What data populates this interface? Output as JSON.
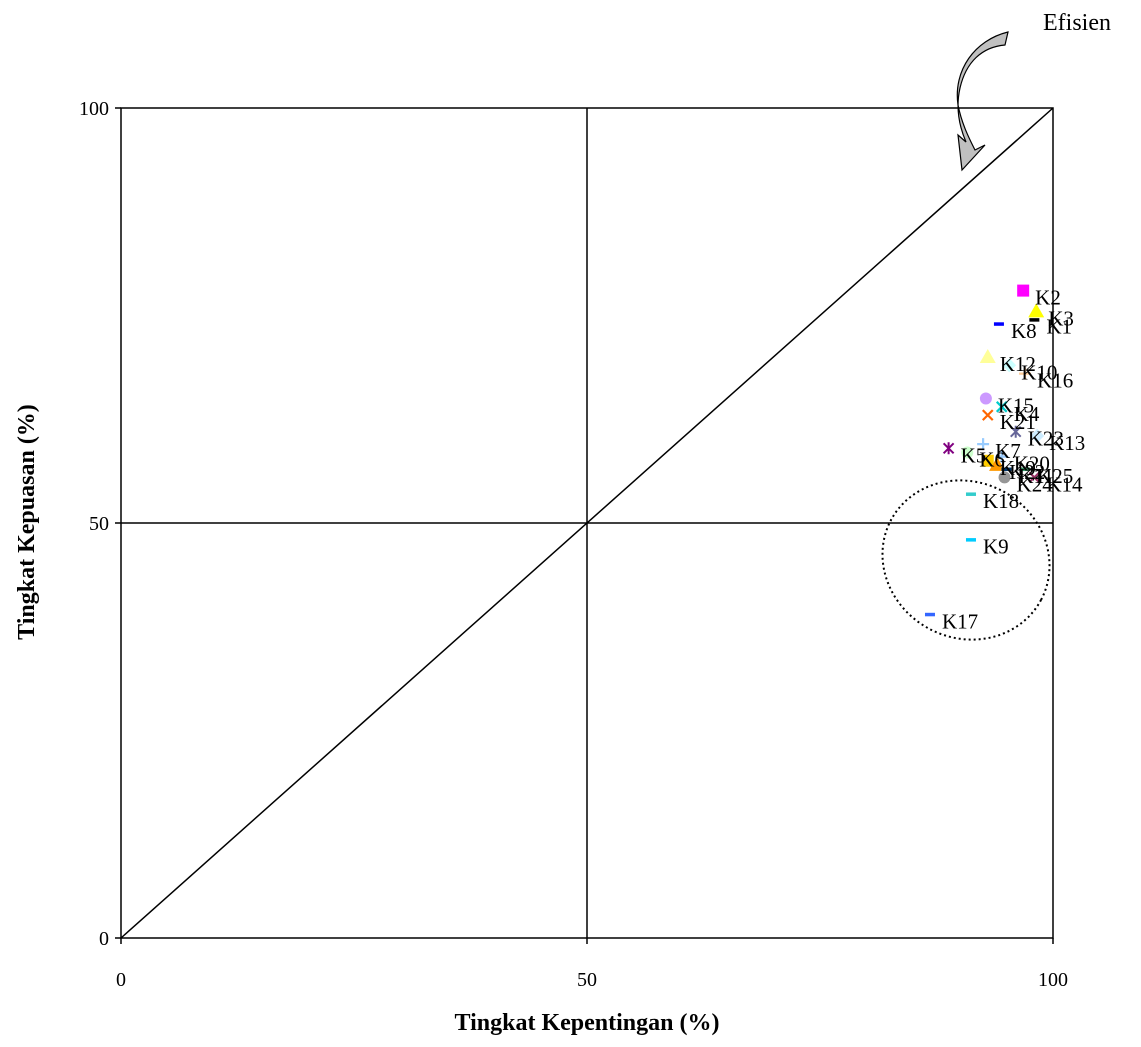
{
  "chart_data": {
    "type": "scatter",
    "title": "",
    "xlabel": "Tingkat Kepentingan (%)",
    "ylabel": "Tingkat Kepuasan (%)",
    "xlim": [
      0,
      100
    ],
    "ylim": [
      0,
      100
    ],
    "xticks": [
      "0",
      "50",
      "100"
    ],
    "yticks": [
      "0",
      "50",
      "100"
    ],
    "grid": "quadrant lines at 50",
    "reference_line": "diagonal y = x",
    "annotation": "Efisien",
    "points": [
      {
        "label": "K2",
        "x": 96.8,
        "y": 78.0,
        "marker": "square",
        "color": "#ff00ff"
      },
      {
        "label": "K3",
        "x": 98.2,
        "y": 75.5,
        "marker": "triangle",
        "color": "#ffff00"
      },
      {
        "label": "K1",
        "x": 98.0,
        "y": 74.5,
        "marker": "dash",
        "color": "#000000"
      },
      {
        "label": "K8",
        "x": 94.2,
        "y": 74.0,
        "marker": "dash",
        "color": "#0000ff"
      },
      {
        "label": "K12",
        "x": 93.0,
        "y": 70.0,
        "marker": "triangle",
        "color": "#ffff99"
      },
      {
        "label": "K10",
        "x": 95.3,
        "y": 69.0,
        "marker": "diamond",
        "color": "#ccffff"
      },
      {
        "label": "K16",
        "x": 97.0,
        "y": 68.0,
        "marker": "plus",
        "color": "#ffcc99"
      },
      {
        "label": "K15",
        "x": 92.8,
        "y": 65.0,
        "marker": "circle",
        "color": "#cc99ff"
      },
      {
        "label": "K4",
        "x": 94.5,
        "y": 64.0,
        "marker": "x",
        "color": "#00cccc"
      },
      {
        "label": "K21",
        "x": 93.0,
        "y": 63.0,
        "marker": "x",
        "color": "#ff6600"
      },
      {
        "label": "K23",
        "x": 96.0,
        "y": 61.0,
        "marker": "star",
        "color": "#666699"
      },
      {
        "label": "K13",
        "x": 98.3,
        "y": 60.5,
        "marker": "diamond",
        "color": "#ccecff"
      },
      {
        "label": "K7",
        "x": 92.5,
        "y": 59.5,
        "marker": "plus",
        "color": "#99ccff"
      },
      {
        "label": "K5",
        "x": 88.8,
        "y": 59.0,
        "marker": "star",
        "color": "#800080"
      },
      {
        "label": "K6",
        "x": 90.8,
        "y": 58.5,
        "marker": "circle",
        "color": "#ccffcc"
      },
      {
        "label": "K20",
        "x": 94.5,
        "y": 58.0,
        "marker": "plus",
        "color": "#99ccff"
      },
      {
        "label": "K19",
        "x": 93.0,
        "y": 57.5,
        "marker": "square",
        "color": "#ffcc00"
      },
      {
        "label": "K22",
        "x": 94.0,
        "y": 57.0,
        "marker": "triangle",
        "color": "#ff9900"
      },
      {
        "label": "K11",
        "x": 95.0,
        "y": 56.5,
        "marker": "dash",
        "color": "#003366"
      },
      {
        "label": "K25",
        "x": 97.0,
        "y": 56.5,
        "marker": "dash",
        "color": "#339966"
      },
      {
        "label": "K24",
        "x": 94.8,
        "y": 55.5,
        "marker": "circle",
        "color": "#969696"
      },
      {
        "label": "K14",
        "x": 98.0,
        "y": 55.5,
        "marker": "x",
        "color": "#993366"
      },
      {
        "label": "K18",
        "x": 91.2,
        "y": 53.5,
        "marker": "dash",
        "color": "#33cccc"
      },
      {
        "label": "K9",
        "x": 91.2,
        "y": 48.0,
        "marker": "dash",
        "color": "#00ccff"
      },
      {
        "label": "K17",
        "x": 86.8,
        "y": 39.0,
        "marker": "dash",
        "color": "#3366ff"
      }
    ]
  }
}
